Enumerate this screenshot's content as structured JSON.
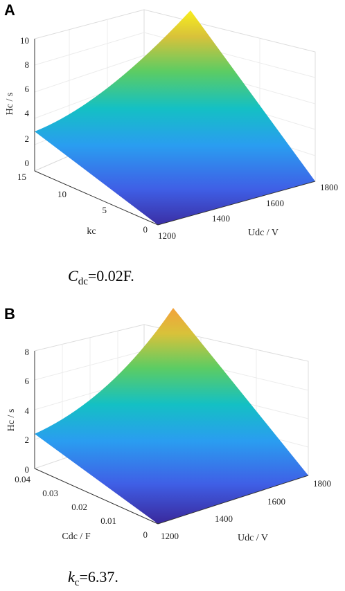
{
  "chart_data": [
    {
      "panel": "A",
      "type": "surface",
      "x_label": "Udc / V",
      "y_label": "kc",
      "z_label": "Hc / s",
      "x_range": [
        1200,
        1800
      ],
      "y_range": [
        0,
        15
      ],
      "z_range": [
        0,
        10
      ],
      "x_ticks": [
        "1200",
        "1400",
        "1600",
        "1800"
      ],
      "y_ticks": [
        "0",
        "5",
        "10",
        "15"
      ],
      "z_ticks": [
        "0",
        "2",
        "4",
        "6",
        "8",
        "10"
      ],
      "corner_values": [
        {
          "x": 1200,
          "y": 0,
          "z": 0
        },
        {
          "x": 1800,
          "y": 0,
          "z": 0
        },
        {
          "x": 1200,
          "y": 15,
          "z": 2.6
        },
        {
          "x": 1800,
          "y": 15,
          "z": 10.8
        }
      ],
      "caption": {
        "symbol": "C",
        "subscript": "dc",
        "value": "=0.02F."
      }
    },
    {
      "panel": "B",
      "type": "surface",
      "x_label": "Udc / V",
      "y_label": "Cdc / F",
      "z_label": "Hc / s",
      "x_range": [
        1200,
        1800
      ],
      "y_range": [
        0,
        0.04
      ],
      "z_range": [
        0,
        8
      ],
      "x_ticks": [
        "1200",
        "1400",
        "1600",
        "1800"
      ],
      "y_ticks": [
        "0",
        "0.01",
        "0.02",
        "0.03",
        "0.04"
      ],
      "z_ticks": [
        "0",
        "2",
        "4",
        "6",
        "8"
      ],
      "corner_values": [
        {
          "x": 1200,
          "y": 0,
          "z": 0
        },
        {
          "x": 1800,
          "y": 0,
          "z": 0
        },
        {
          "x": 1200,
          "y": 0.04,
          "z": 2.3
        },
        {
          "x": 1800,
          "y": 0.04,
          "z": 8.8
        }
      ],
      "caption": {
        "symbol": "k",
        "subscript": "c",
        "value": "=6.37."
      }
    }
  ]
}
